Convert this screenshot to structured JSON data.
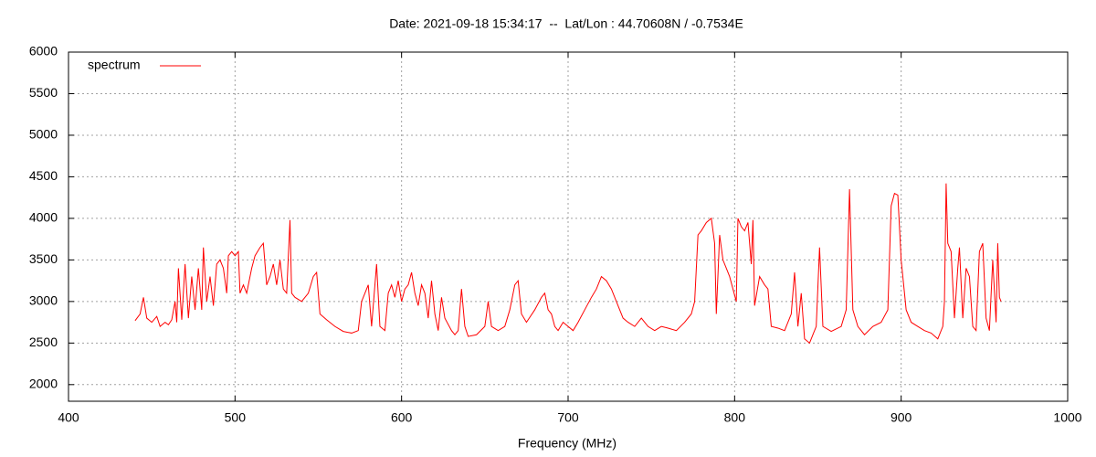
{
  "chart_data": {
    "type": "line",
    "title": "Date: 2021-09-18 15:34:17  --  Lat/Lon : 44.70608N / -0.7534E",
    "x_label": "Frequency (MHz)",
    "xlim": [
      400,
      1000
    ],
    "xticks": [
      400,
      500,
      600,
      700,
      800,
      900,
      1000
    ],
    "ylim": [
      1800,
      6000
    ],
    "yticks": [
      2000,
      2500,
      3000,
      3500,
      4000,
      4500,
      5000,
      5500,
      6000
    ],
    "grid": true,
    "legend": "top-left",
    "series": [
      {
        "name": "spectrum",
        "color": "#ff0000",
        "x": [
          440,
          443,
          445,
          447,
          450,
          453,
          455,
          458,
          460,
          462,
          464,
          465,
          466,
          468,
          470,
          472,
          474,
          476,
          478,
          480,
          481,
          483,
          485,
          487,
          489,
          491,
          493,
          495,
          496,
          498,
          500,
          502,
          503,
          505,
          507,
          510,
          512,
          515,
          517,
          519,
          521,
          523,
          525,
          527,
          529,
          531,
          533,
          534,
          536,
          540,
          544,
          547,
          549,
          551,
          555,
          560,
          565,
          570,
          574,
          576,
          578,
          580,
          582,
          585,
          587,
          590,
          592,
          594,
          596,
          598,
          600,
          602,
          604,
          606,
          608,
          610,
          612,
          614,
          616,
          618,
          620,
          622,
          624,
          626,
          630,
          632,
          634,
          636,
          638,
          640,
          645,
          650,
          652,
          654,
          658,
          662,
          665,
          668,
          670,
          672,
          675,
          680,
          684,
          686,
          688,
          690,
          692,
          694,
          697,
          700,
          703,
          706,
          710,
          714,
          717,
          720,
          723,
          726,
          730,
          733,
          736,
          740,
          744,
          748,
          752,
          756,
          760,
          765,
          770,
          774,
          776,
          778,
          780,
          783,
          786,
          788,
          789,
          791,
          793,
          795,
          797,
          799,
          801,
          802,
          804,
          806,
          808,
          810,
          811,
          812,
          815,
          818,
          820,
          822,
          826,
          830,
          834,
          836,
          838,
          840,
          842,
          845,
          847,
          849,
          851,
          853,
          858,
          864,
          867,
          869,
          871,
          874,
          878,
          883,
          888,
          892,
          894,
          896,
          898,
          900,
          903,
          906,
          910,
          914,
          918,
          922,
          925,
          926,
          927,
          928,
          930,
          932,
          934,
          935,
          937,
          939,
          941,
          943,
          945,
          947,
          949,
          951,
          953,
          955,
          957,
          958,
          959,
          960
        ],
        "values": [
          2770,
          2850,
          3050,
          2800,
          2750,
          2820,
          2700,
          2750,
          2720,
          2780,
          3000,
          2750,
          3400,
          2780,
          3450,
          2800,
          3300,
          2900,
          3400,
          2900,
          3650,
          3000,
          3300,
          2950,
          3450,
          3500,
          3400,
          3100,
          3550,
          3600,
          3550,
          3600,
          3100,
          3200,
          3100,
          3400,
          3550,
          3650,
          3700,
          3200,
          3300,
          3450,
          3200,
          3500,
          3150,
          3100,
          3980,
          3100,
          3050,
          3000,
          3100,
          3300,
          3350,
          2850,
          2780,
          2700,
          2640,
          2620,
          2650,
          3000,
          3100,
          3200,
          2700,
          3450,
          2700,
          2650,
          3100,
          3200,
          3050,
          3250,
          3000,
          3150,
          3200,
          3350,
          3100,
          2950,
          3200,
          3100,
          2800,
          3250,
          2850,
          2650,
          3050,
          2800,
          2650,
          2600,
          2650,
          3150,
          2700,
          2580,
          2600,
          2700,
          3000,
          2700,
          2650,
          2700,
          2900,
          3200,
          3250,
          2850,
          2750,
          2900,
          3050,
          3100,
          2900,
          2850,
          2700,
          2650,
          2750,
          2700,
          2650,
          2750,
          2900,
          3050,
          3150,
          3300,
          3250,
          3150,
          2950,
          2800,
          2750,
          2700,
          2800,
          2700,
          2650,
          2700,
          2680,
          2650,
          2750,
          2850,
          3000,
          3800,
          3850,
          3950,
          4000,
          3700,
          2850,
          3800,
          3500,
          3400,
          3300,
          3150,
          3000,
          4000,
          3900,
          3850,
          3950,
          3450,
          3980,
          2950,
          3300,
          3200,
          3150,
          2700,
          2680,
          2650,
          2850,
          3350,
          2700,
          3100,
          2550,
          2500,
          2600,
          2700,
          3650,
          2700,
          2640,
          2700,
          2900,
          4350,
          2900,
          2700,
          2600,
          2700,
          2750,
          2900,
          4150,
          4300,
          4280,
          3500,
          2900,
          2750,
          2700,
          2650,
          2620,
          2550,
          2700,
          3000,
          4420,
          3700,
          3600,
          2800,
          3400,
          3650,
          2800,
          3400,
          3300,
          2700,
          2650,
          3600,
          3700,
          2800,
          2650,
          3500,
          2750,
          3700,
          3050,
          3000
        ]
      }
    ]
  }
}
